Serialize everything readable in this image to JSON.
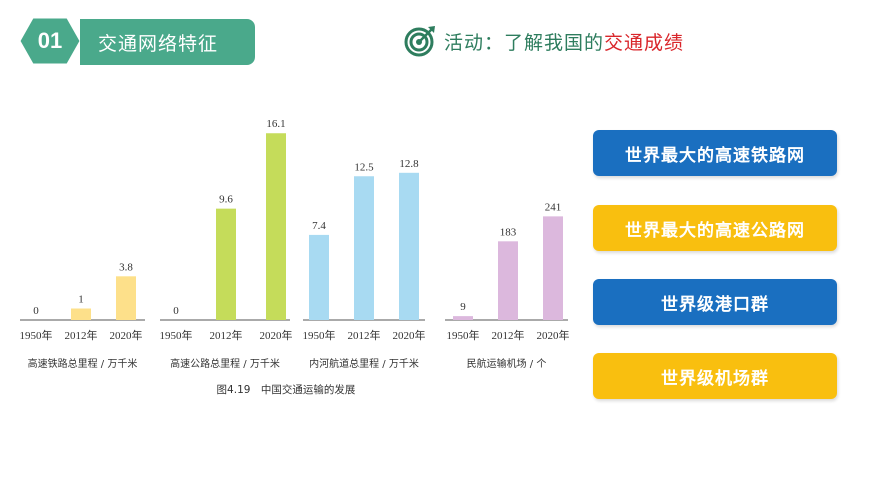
{
  "header": {
    "section_number": "01",
    "section_title": "交通网络特征",
    "activity_prefix": "活动：了解我国的",
    "activity_highlight": "交通成绩",
    "icon": "target-icon",
    "colors": {
      "teal": "#4aa98b",
      "green_text": "#2e7d5e",
      "red_text": "#d9262b"
    }
  },
  "chart_data": [
    {
      "type": "bar",
      "caption": "高速铁路总里程 / 万千米",
      "categories": [
        "1950年",
        "2012年",
        "2020年"
      ],
      "values": [
        0,
        1,
        3.8
      ],
      "value_labels": [
        "0",
        "1",
        "3.8"
      ],
      "color": "#fde08a"
    },
    {
      "type": "bar",
      "caption": "高速公路总里程 / 万千米",
      "categories": [
        "1950年",
        "2012年",
        "2020年"
      ],
      "values": [
        0,
        9.6,
        16.1
      ],
      "value_labels": [
        "0",
        "9.6",
        "16.1"
      ],
      "color": "#c5dc5a"
    },
    {
      "type": "bar",
      "caption": "内河航道总里程 / 万千米",
      "categories": [
        "1950年",
        "2012年",
        "2020年"
      ],
      "values": [
        7.4,
        12.5,
        12.8
      ],
      "value_labels": [
        "7.4",
        "12.5",
        "12.8"
      ],
      "color": "#a8daf2"
    },
    {
      "type": "bar",
      "caption": "民航运输机场 / 个",
      "categories": [
        "1950年",
        "2012年",
        "2020年"
      ],
      "values": [
        9,
        183,
        241
      ],
      "value_labels": [
        "9",
        "183",
        "241"
      ],
      "color": "#dcb8dd"
    }
  ],
  "figure_caption": "图4.19　中国交通运输的发展",
  "buttons": [
    {
      "label": "世界最大的高速铁路网",
      "color": "#1a6fc0"
    },
    {
      "label": "世界最大的高速公路网",
      "color": "#f9bf0f"
    },
    {
      "label": "世界级港口群",
      "color": "#1a6fc0"
    },
    {
      "label": "世界级机场群",
      "color": "#f9bf0f"
    }
  ]
}
